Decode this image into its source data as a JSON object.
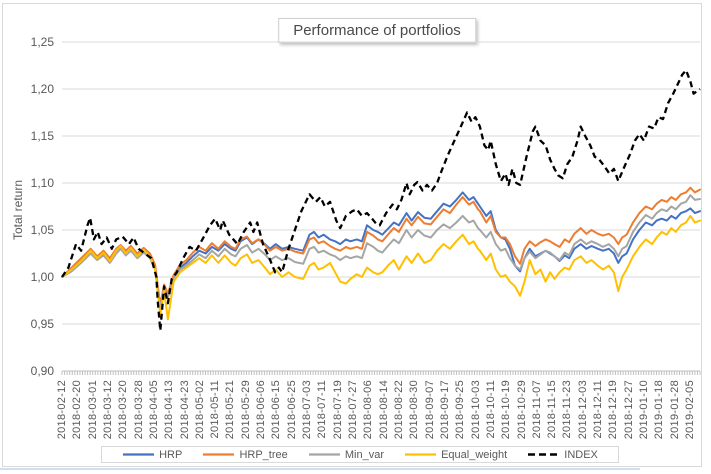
{
  "chart": {
    "title": "Performance of portfolios",
    "y_axis": {
      "label": "Total return",
      "tick_labels": [
        "0,90",
        "0,95",
        "1,00",
        "1,05",
        "1,10",
        "1,15",
        "1,20",
        "1,25"
      ],
      "tick_values": [
        0.9,
        0.95,
        1.0,
        1.05,
        1.1,
        1.15,
        1.2,
        1.25
      ]
    },
    "x_axis": {
      "tick_labels": [
        "2018-02-12",
        "2018-02-20",
        "2018-03-01",
        "2018-03-12",
        "2018-03-20",
        "2018-03-28",
        "2018-04-05",
        "2018-04-13",
        "2018-04-23",
        "2018-05-02",
        "2018-05-11",
        "2018-05-21",
        "2018-05-29",
        "2018-06-06",
        "2018-06-15",
        "2018-06-25",
        "2018-07-03",
        "2018-07-11",
        "2018-07-19",
        "2018-07-27",
        "2018-08-06",
        "2018-08-14",
        "2018-08-22",
        "2018-08-30",
        "2018-09-07",
        "2018-09-17",
        "2018-09-25",
        "2018-10-03",
        "2018-10-11",
        "2018-10-19",
        "2018-10-29",
        "2018-11-07",
        "2018-11-15",
        "2018-11-23",
        "2018-12-03",
        "2018-12-11",
        "2018-12-19",
        "2018-12-27",
        "2019-01-10",
        "2019-01-18",
        "2019-01-28",
        "2019-02-05"
      ]
    },
    "legend": {
      "items": [
        {
          "label": "HRP",
          "color": "#4472C4",
          "dashed": false
        },
        {
          "label": "HRP_tree",
          "color": "#ED7D31",
          "dashed": false
        },
        {
          "label": "Min_var",
          "color": "#A5A5A5",
          "dashed": false
        },
        {
          "label": "Equal_weight",
          "color": "#FFC000",
          "dashed": false
        },
        {
          "label": "INDEX",
          "color": "#000000",
          "dashed": true
        }
      ]
    },
    "colors": {
      "grid": "#D9D9D9",
      "axis": "#BFBFBF",
      "text": "#595959",
      "accent_blue": "#4472C4",
      "accent_orange": "#ED7D31",
      "accent_gray": "#A5A5A5",
      "accent_yellow": "#FFC000",
      "index_black": "#000000"
    }
  },
  "chart_data": {
    "type": "line",
    "title": "Performance of portfolios",
    "xlabel": "",
    "ylabel": "Total return",
    "ylim": [
      0.9,
      1.25
    ],
    "grid": true,
    "legend_position": "bottom",
    "x_categories": [
      "2018-02-12",
      "2018-02-20",
      "2018-03-01",
      "2018-03-12",
      "2018-03-20",
      "2018-03-28",
      "2018-04-05",
      "2018-04-13",
      "2018-04-23",
      "2018-05-02",
      "2018-05-11",
      "2018-05-21",
      "2018-05-29",
      "2018-06-06",
      "2018-06-15",
      "2018-06-25",
      "2018-07-03",
      "2018-07-11",
      "2018-07-19",
      "2018-07-27",
      "2018-08-06",
      "2018-08-14",
      "2018-08-22",
      "2018-08-30",
      "2018-09-07",
      "2018-09-17",
      "2018-09-25",
      "2018-10-03",
      "2018-10-11",
      "2018-10-19",
      "2018-10-29",
      "2018-11-07",
      "2018-11-15",
      "2018-11-23",
      "2018-12-03",
      "2018-12-11",
      "2018-12-19",
      "2018-12-27",
      "2019-01-10",
      "2019-01-18",
      "2019-01-28",
      "2019-02-05"
    ],
    "portfolio_t": [
      0.0,
      0.015,
      0.03,
      0.045,
      0.055,
      0.065,
      0.075,
      0.085,
      0.092,
      0.1,
      0.108,
      0.118,
      0.128,
      0.138,
      0.146,
      0.154,
      0.16,
      0.166,
      0.175,
      0.185,
      0.195,
      0.205,
      0.215,
      0.225,
      0.235,
      0.245,
      0.255,
      0.265,
      0.272,
      0.28,
      0.29,
      0.298,
      0.308,
      0.318,
      0.326,
      0.335,
      0.345,
      0.355,
      0.365,
      0.378,
      0.388,
      0.395,
      0.402,
      0.41,
      0.42,
      0.428,
      0.436,
      0.445,
      0.452,
      0.462,
      0.47,
      0.478,
      0.488,
      0.495,
      0.502,
      0.512,
      0.52,
      0.528,
      0.54,
      0.548,
      0.558,
      0.568,
      0.578,
      0.588,
      0.598,
      0.608,
      0.618,
      0.628,
      0.638,
      0.645,
      0.652,
      0.655,
      0.665,
      0.672,
      0.68,
      0.688,
      0.695,
      0.702,
      0.71,
      0.718,
      0.725,
      0.733,
      0.742,
      0.75,
      0.758,
      0.765,
      0.772,
      0.78,
      0.788,
      0.795,
      0.803,
      0.813,
      0.822,
      0.83,
      0.84,
      0.848,
      0.857,
      0.865,
      0.872,
      0.878,
      0.885,
      0.895,
      0.905,
      0.915,
      0.925,
      0.932,
      0.94,
      0.948,
      0.955,
      0.962,
      0.97,
      0.978,
      0.985,
      0.992,
      1.0
    ],
    "series": [
      {
        "name": "HRP",
        "color": "#4472C4",
        "style": "solid",
        "values": [
          1.0,
          1.008,
          1.018,
          1.028,
          1.02,
          1.025,
          1.018,
          1.028,
          1.032,
          1.025,
          1.03,
          1.022,
          1.028,
          1.022,
          1.01,
          0.968,
          0.99,
          0.98,
          1.0,
          1.01,
          1.015,
          1.022,
          1.028,
          1.025,
          1.032,
          1.028,
          1.035,
          1.03,
          1.028,
          1.038,
          1.042,
          1.035,
          1.04,
          1.035,
          1.03,
          1.035,
          1.03,
          1.032,
          1.03,
          1.028,
          1.045,
          1.048,
          1.042,
          1.045,
          1.04,
          1.038,
          1.035,
          1.04,
          1.038,
          1.04,
          1.038,
          1.055,
          1.05,
          1.048,
          1.045,
          1.052,
          1.058,
          1.055,
          1.068,
          1.06,
          1.069,
          1.063,
          1.062,
          1.07,
          1.078,
          1.075,
          1.082,
          1.09,
          1.082,
          1.085,
          1.078,
          1.075,
          1.065,
          1.07,
          1.05,
          1.042,
          1.04,
          1.03,
          1.012,
          1.006,
          1.02,
          1.03,
          1.022,
          1.025,
          1.028,
          1.025,
          1.022,
          1.017,
          1.023,
          1.02,
          1.03,
          1.035,
          1.03,
          1.033,
          1.03,
          1.028,
          1.03,
          1.025,
          1.015,
          1.022,
          1.025,
          1.04,
          1.05,
          1.058,
          1.055,
          1.06,
          1.062,
          1.06,
          1.065,
          1.062,
          1.068,
          1.07,
          1.073,
          1.068,
          1.07
        ]
      },
      {
        "name": "HRP_tree",
        "color": "#ED7D31",
        "style": "solid",
        "values": [
          1.0,
          1.01,
          1.02,
          1.03,
          1.022,
          1.028,
          1.02,
          1.03,
          1.034,
          1.028,
          1.033,
          1.025,
          1.031,
          1.025,
          1.013,
          0.97,
          0.992,
          0.982,
          1.002,
          1.013,
          1.018,
          1.026,
          1.032,
          1.028,
          1.036,
          1.03,
          1.038,
          1.032,
          1.03,
          1.04,
          1.043,
          1.036,
          1.04,
          1.034,
          1.028,
          1.032,
          1.028,
          1.03,
          1.027,
          1.025,
          1.04,
          1.042,
          1.036,
          1.038,
          1.033,
          1.03,
          1.028,
          1.032,
          1.03,
          1.032,
          1.03,
          1.048,
          1.044,
          1.04,
          1.038,
          1.046,
          1.052,
          1.048,
          1.062,
          1.055,
          1.064,
          1.057,
          1.056,
          1.064,
          1.072,
          1.068,
          1.077,
          1.085,
          1.077,
          1.08,
          1.072,
          1.07,
          1.058,
          1.065,
          1.048,
          1.042,
          1.042,
          1.035,
          1.022,
          1.014,
          1.03,
          1.038,
          1.033,
          1.037,
          1.04,
          1.038,
          1.035,
          1.032,
          1.04,
          1.037,
          1.046,
          1.052,
          1.046,
          1.05,
          1.046,
          1.044,
          1.046,
          1.042,
          1.035,
          1.042,
          1.045,
          1.058,
          1.068,
          1.075,
          1.072,
          1.078,
          1.082,
          1.08,
          1.085,
          1.082,
          1.088,
          1.09,
          1.095,
          1.09,
          1.093
        ]
      },
      {
        "name": "Min_var",
        "color": "#A5A5A5",
        "style": "solid",
        "values": [
          1.0,
          1.006,
          1.015,
          1.025,
          1.018,
          1.023,
          1.015,
          1.025,
          1.03,
          1.023,
          1.028,
          1.02,
          1.026,
          1.02,
          1.008,
          0.966,
          0.988,
          0.978,
          0.998,
          1.008,
          1.012,
          1.018,
          1.024,
          1.02,
          1.028,
          1.022,
          1.03,
          1.024,
          1.022,
          1.03,
          1.034,
          1.026,
          1.03,
          1.024,
          1.018,
          1.022,
          1.018,
          1.02,
          1.016,
          1.014,
          1.03,
          1.032,
          1.026,
          1.028,
          1.024,
          1.022,
          1.018,
          1.022,
          1.02,
          1.022,
          1.02,
          1.036,
          1.032,
          1.028,
          1.026,
          1.034,
          1.04,
          1.036,
          1.05,
          1.042,
          1.05,
          1.044,
          1.042,
          1.05,
          1.056,
          1.052,
          1.058,
          1.065,
          1.058,
          1.06,
          1.052,
          1.05,
          1.042,
          1.048,
          1.035,
          1.028,
          1.03,
          1.02,
          1.012,
          1.008,
          1.02,
          1.027,
          1.02,
          1.024,
          1.028,
          1.026,
          1.022,
          1.018,
          1.026,
          1.023,
          1.035,
          1.04,
          1.035,
          1.038,
          1.035,
          1.032,
          1.035,
          1.03,
          1.022,
          1.03,
          1.033,
          1.048,
          1.058,
          1.066,
          1.062,
          1.068,
          1.072,
          1.07,
          1.075,
          1.072,
          1.078,
          1.08,
          1.087,
          1.082,
          1.083
        ]
      },
      {
        "name": "Equal_weight",
        "color": "#FFC000",
        "style": "solid",
        "values": [
          1.0,
          1.008,
          1.017,
          1.028,
          1.02,
          1.026,
          1.017,
          1.028,
          1.033,
          1.025,
          1.031,
          1.022,
          1.029,
          1.022,
          1.008,
          0.96,
          0.985,
          0.955,
          0.995,
          1.005,
          1.01,
          1.015,
          1.02,
          1.015,
          1.023,
          1.015,
          1.023,
          1.015,
          1.012,
          1.02,
          1.024,
          1.015,
          1.018,
          1.01,
          1.003,
          1.008,
          1.0,
          1.005,
          1.0,
          0.998,
          1.012,
          1.015,
          1.008,
          1.01,
          1.015,
          1.005,
          0.995,
          0.993,
          0.998,
          1.003,
          1.0,
          1.01,
          1.005,
          1.003,
          1.005,
          1.013,
          1.018,
          1.008,
          1.022,
          1.015,
          1.025,
          1.015,
          1.018,
          1.028,
          1.035,
          1.03,
          1.038,
          1.045,
          1.035,
          1.038,
          1.03,
          1.028,
          1.018,
          1.025,
          1.008,
          1.0,
          1.002,
          0.995,
          0.99,
          0.98,
          0.995,
          1.018,
          1.003,
          1.008,
          0.995,
          1.005,
          0.998,
          1.005,
          1.01,
          1.008,
          1.018,
          1.022,
          1.015,
          1.018,
          1.012,
          1.008,
          1.012,
          1.005,
          0.985,
          1.0,
          1.008,
          1.022,
          1.032,
          1.04,
          1.035,
          1.042,
          1.048,
          1.045,
          1.052,
          1.048,
          1.055,
          1.058,
          1.065,
          1.058,
          1.06
        ]
      },
      {
        "name": "INDEX",
        "color": "#000000",
        "style": "dashed",
        "t": [
          0.0,
          0.01,
          0.022,
          0.03,
          0.04,
          0.044,
          0.05,
          0.056,
          0.062,
          0.07,
          0.078,
          0.085,
          0.095,
          0.105,
          0.112,
          0.12,
          0.13,
          0.14,
          0.148,
          0.15,
          0.154,
          0.16,
          0.166,
          0.172,
          0.18,
          0.19,
          0.2,
          0.21,
          0.22,
          0.232,
          0.24,
          0.248,
          0.252,
          0.262,
          0.275,
          0.285,
          0.295,
          0.3,
          0.306,
          0.315,
          0.325,
          0.334,
          0.34,
          0.345,
          0.355,
          0.365,
          0.375,
          0.388,
          0.398,
          0.405,
          0.412,
          0.42,
          0.43,
          0.436,
          0.445,
          0.455,
          0.462,
          0.47,
          0.478,
          0.486,
          0.492,
          0.498,
          0.508,
          0.518,
          0.525,
          0.532,
          0.54,
          0.545,
          0.552,
          0.557,
          0.565,
          0.572,
          0.58,
          0.588,
          0.595,
          0.605,
          0.615,
          0.625,
          0.635,
          0.642,
          0.648,
          0.655,
          0.662,
          0.668,
          0.672,
          0.68,
          0.688,
          0.695,
          0.7,
          0.706,
          0.712,
          0.718,
          0.728,
          0.738,
          0.742,
          0.75,
          0.758,
          0.765,
          0.772,
          0.778,
          0.785,
          0.792,
          0.8,
          0.808,
          0.813,
          0.82,
          0.828,
          0.835,
          0.842,
          0.85,
          0.858,
          0.865,
          0.872,
          0.88,
          0.89,
          0.898,
          0.905,
          0.912,
          0.92,
          0.928,
          0.935,
          0.942,
          0.95,
          0.958,
          0.965,
          0.972,
          0.978,
          0.985,
          0.99,
          1.0
        ],
        "values": [
          1.0,
          1.01,
          1.035,
          1.028,
          1.055,
          1.063,
          1.04,
          1.048,
          1.035,
          1.042,
          1.03,
          1.04,
          1.043,
          1.035,
          1.042,
          1.03,
          1.025,
          1.02,
          1.0,
          0.975,
          0.943,
          0.99,
          0.972,
          0.998,
          1.005,
          1.02,
          1.032,
          1.028,
          1.04,
          1.055,
          1.062,
          1.05,
          1.06,
          1.045,
          1.035,
          1.048,
          1.058,
          1.048,
          1.058,
          1.035,
          1.02,
          1.005,
          1.01,
          1.005,
          1.03,
          1.05,
          1.07,
          1.088,
          1.08,
          1.085,
          1.075,
          1.08,
          1.06,
          1.052,
          1.065,
          1.07,
          1.072,
          1.065,
          1.068,
          1.062,
          1.057,
          1.055,
          1.068,
          1.077,
          1.072,
          1.082,
          1.1,
          1.088,
          1.098,
          1.101,
          1.092,
          1.098,
          1.092,
          1.1,
          1.113,
          1.13,
          1.145,
          1.16,
          1.175,
          1.165,
          1.17,
          1.16,
          1.14,
          1.135,
          1.145,
          1.12,
          1.102,
          1.11,
          1.098,
          1.115,
          1.1,
          1.098,
          1.128,
          1.155,
          1.16,
          1.145,
          1.14,
          1.125,
          1.115,
          1.108,
          1.105,
          1.12,
          1.128,
          1.145,
          1.16,
          1.15,
          1.14,
          1.128,
          1.125,
          1.118,
          1.11,
          1.115,
          1.102,
          1.115,
          1.13,
          1.145,
          1.152,
          1.145,
          1.16,
          1.158,
          1.17,
          1.168,
          1.185,
          1.195,
          1.205,
          1.215,
          1.22,
          1.208,
          1.195,
          1.2
        ]
      }
    ]
  }
}
